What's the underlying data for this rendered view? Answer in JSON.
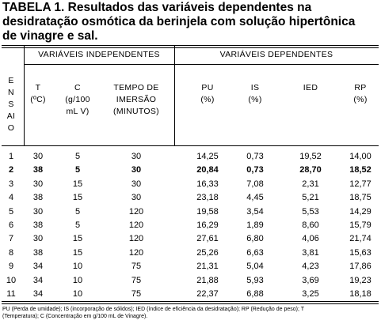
{
  "title": [
    "TABELA 1. Resultados das variáveis dependentes na",
    "desidratação osmótica da berinjela com solução hipertônica",
    "de vinagre e sal."
  ],
  "table": {
    "ensaio_header": [
      "E",
      "N",
      "S",
      "AI",
      "O"
    ],
    "groups": [
      "VARIÁVEIS INDEPENDENTES",
      "VARIÁVEIS DEPENDENTES"
    ],
    "columns": [
      [
        "T",
        "(ºC)"
      ],
      [
        "C",
        "(g/100",
        "mL V)"
      ],
      [
        "TEMPO DE",
        "IMERSÃO",
        "(MINUTOS)"
      ],
      [
        "PU",
        "(%)"
      ],
      [
        "IS",
        "(%)"
      ],
      [
        "IED"
      ],
      [
        "RP",
        "(%)"
      ]
    ],
    "rows": [
      [
        "1",
        "30",
        "5",
        "30",
        "14,25",
        "0,73",
        "19,52",
        "14,00"
      ],
      [
        "2",
        "38",
        "5",
        "30",
        "20,84",
        "0,73",
        "28,70",
        "18,52"
      ],
      [
        "3",
        "30",
        "15",
        "30",
        "16,33",
        "7,08",
        "2,31",
        "12,77"
      ],
      [
        "4",
        "38",
        "15",
        "30",
        "23,18",
        "4,45",
        "5,21",
        "18,75"
      ],
      [
        "5",
        "30",
        "5",
        "120",
        "19,58",
        "3,54",
        "5,53",
        "14,29"
      ],
      [
        "6",
        "38",
        "5",
        "120",
        "16,29",
        "1,89",
        "8,60",
        "15,79"
      ],
      [
        "7",
        "30",
        "15",
        "120",
        "27,61",
        "6,80",
        "4,06",
        "21,74"
      ],
      [
        "8",
        "38",
        "15",
        "120",
        "25,26",
        "6,63",
        "3,81",
        "15,63"
      ],
      [
        "9",
        "34",
        "10",
        "75",
        "21,31",
        "5,04",
        "4,23",
        "17,86"
      ],
      [
        "10",
        "34",
        "10",
        "75",
        "21,88",
        "5,93",
        "3,69",
        "19,23"
      ],
      [
        "11",
        "34",
        "10",
        "75",
        "22,37",
        "6,88",
        "3,25",
        "18,18"
      ]
    ]
  },
  "footnote": [
    "PU (Perda de umidade); IS (incorporação de sólidos); IED (índice de eficiência da desidratação); RP (Redução de peso); T",
    "(Temperatura); C (Concentração em g/100 mL de Vinagre)."
  ]
}
